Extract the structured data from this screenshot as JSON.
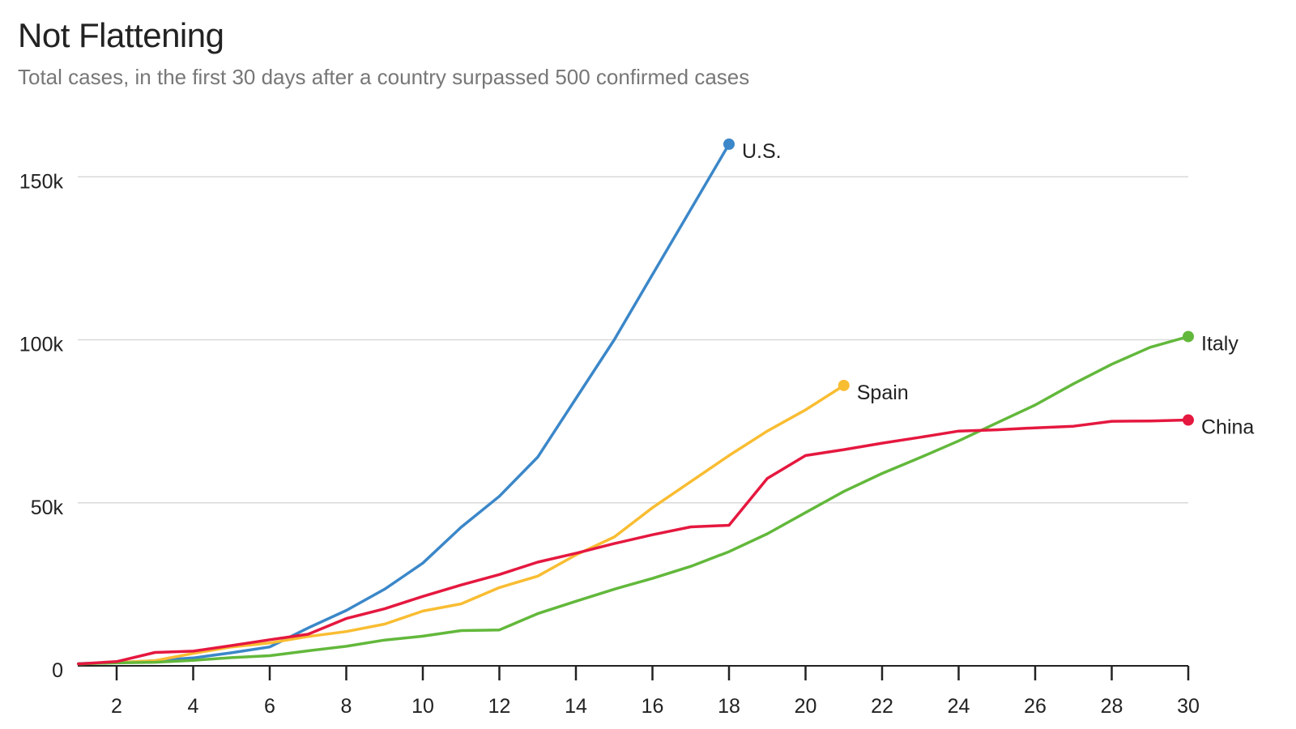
{
  "chart_data": {
    "type": "line",
    "title": "Not Flattening",
    "subtitle": "Total cases, in the first 30 days after a country surpassed 500 confirmed cases",
    "xlabel": "",
    "ylabel": "",
    "xlim": [
      1,
      30
    ],
    "ylim": [
      0,
      160000
    ],
    "x_ticks": [
      2,
      4,
      6,
      8,
      10,
      12,
      14,
      16,
      18,
      20,
      22,
      24,
      26,
      28,
      30
    ],
    "y_ticks": [
      {
        "value": 0,
        "label": "0"
      },
      {
        "value": 50000,
        "label": "50k"
      },
      {
        "value": 100000,
        "label": "100k"
      },
      {
        "value": 150000,
        "label": "150k"
      }
    ],
    "grid": "horizontal",
    "series": [
      {
        "name": "U.S.",
        "color": "#3b87c9",
        "x": [
          1,
          2,
          3,
          4,
          5,
          6,
          7,
          8,
          9,
          10,
          11,
          12,
          13,
          14,
          15,
          16,
          17,
          18
        ],
        "y": [
          700,
          1000,
          1600,
          2400,
          4000,
          5800,
          11600,
          17000,
          23500,
          31500,
          42500,
          52000,
          64000,
          82000,
          100000,
          120000,
          140000,
          160000
        ]
      },
      {
        "name": "Spain",
        "color": "#f9bd32",
        "x": [
          1,
          2,
          3,
          4,
          5,
          6,
          7,
          8,
          9,
          10,
          11,
          12,
          13,
          14,
          15,
          16,
          17,
          18,
          19,
          20,
          21
        ],
        "y": [
          600,
          1000,
          1600,
          3800,
          5800,
          7000,
          9000,
          10500,
          12800,
          16800,
          19000,
          24000,
          27500,
          34000,
          39500,
          48500,
          56500,
          64500,
          72000,
          78500,
          86000
        ]
      },
      {
        "name": "Italy",
        "color": "#62b83b",
        "x": [
          1,
          2,
          3,
          4,
          5,
          6,
          7,
          8,
          9,
          10,
          11,
          12,
          13,
          14,
          15,
          16,
          17,
          18,
          19,
          20,
          21,
          22,
          23,
          24,
          25,
          26,
          27,
          28,
          29,
          30
        ],
        "y": [
          600,
          900,
          1100,
          1700,
          2500,
          3100,
          4600,
          6000,
          7900,
          9100,
          10800,
          11000,
          16000,
          19800,
          23500,
          26800,
          30500,
          35000,
          40500,
          47000,
          53500,
          59000,
          63900,
          69000,
          74500,
          80000,
          86500,
          92500,
          97700,
          101000
        ]
      },
      {
        "name": "China",
        "color": "#e5183f",
        "x": [
          1,
          2,
          3,
          4,
          5,
          6,
          7,
          8,
          9,
          10,
          11,
          12,
          13,
          14,
          15,
          16,
          17,
          18,
          19,
          20,
          21,
          22,
          23,
          24,
          25,
          26,
          27,
          28,
          29,
          30
        ],
        "y": [
          600,
          1300,
          4100,
          4500,
          6200,
          8000,
          9700,
          14500,
          17500,
          21300,
          24800,
          28000,
          31800,
          34500,
          37500,
          40200,
          42600,
          43100,
          57500,
          64500,
          66300,
          68300,
          70100,
          72000,
          72400,
          73000,
          73500,
          75000,
          75100,
          75400
        ]
      }
    ]
  }
}
